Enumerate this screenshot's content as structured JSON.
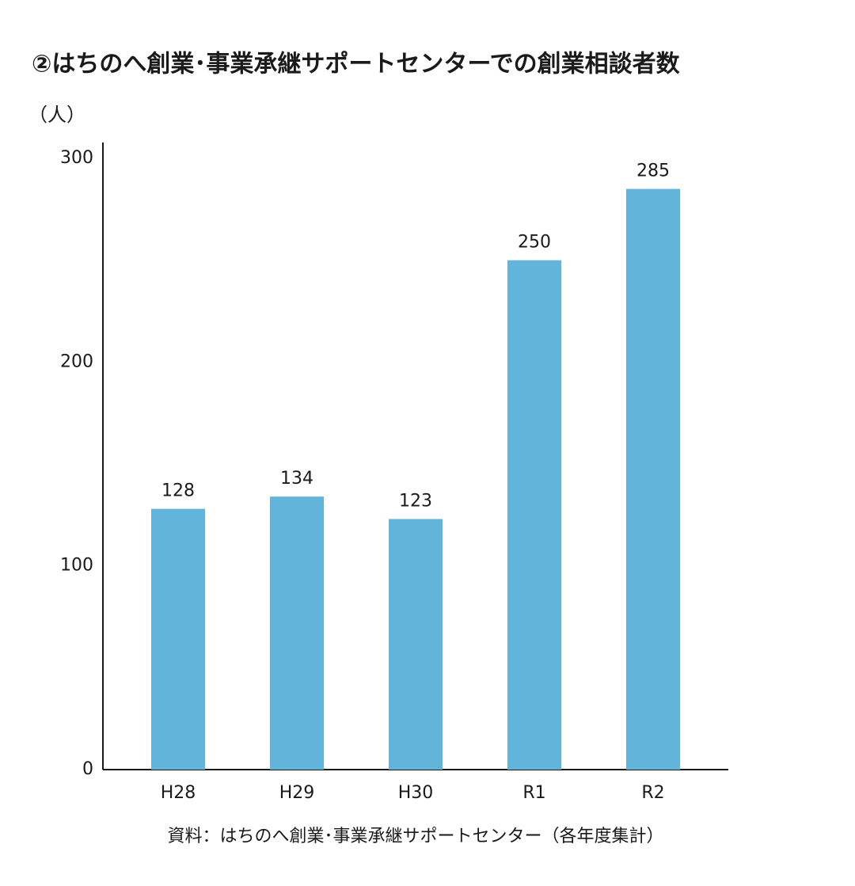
{
  "chart_data": {
    "type": "bar",
    "title": "②はちのへ創業･事業承継サポートセンターでの創業相談者数",
    "y_label": "（人）",
    "source": "資料：はちのへ創業･事業承継サポートセンター（各年度集計）",
    "categories": [
      "H28",
      "H29",
      "H30",
      "R1",
      "R2"
    ],
    "values": [
      128,
      134,
      123,
      250,
      285
    ],
    "color": "#63b4da",
    "ylim": [
      0,
      300
    ],
    "yticks": [
      0,
      100,
      200,
      300
    ],
    "grid": false
  }
}
